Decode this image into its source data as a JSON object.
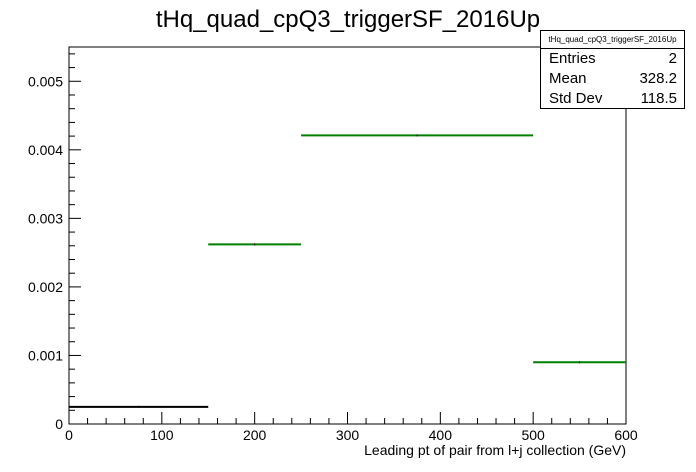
{
  "chart_data": {
    "type": "bar",
    "title": "tHq_quad_cpQ3_triggerSF_2016Up",
    "xlabel": "Leading pt of pair from l+j collection (GeV)",
    "ylabel": "",
    "xlim": [
      0,
      600
    ],
    "ylim": [
      0,
      0.0055
    ],
    "x_ticks": [
      "0",
      "100",
      "200",
      "300",
      "400",
      "500",
      "600"
    ],
    "y_ticks": [
      "0",
      "0.001",
      "0.002",
      "0.003",
      "0.004",
      "0.005"
    ],
    "bins": [
      {
        "x_low": 0,
        "x_high": 150,
        "value": 0.00025,
        "color": "#000000"
      },
      {
        "x_low": 150,
        "x_high": 250,
        "value": 0.00262,
        "color": "#008000"
      },
      {
        "x_low": 250,
        "x_high": 500,
        "value": 0.00421,
        "color": "#008000"
      },
      {
        "x_low": 500,
        "x_high": 600,
        "value": 0.0009,
        "color": "#008000"
      }
    ],
    "stats": {
      "name": "tHq_quad_cpQ3_triggerSF_2016Up",
      "entries_label": "Entries",
      "entries": "2",
      "mean_label": "Mean",
      "mean": "328.2",
      "stddev_label": "Std Dev",
      "stddev": "118.5"
    },
    "grid": false,
    "legend": "top-right"
  }
}
